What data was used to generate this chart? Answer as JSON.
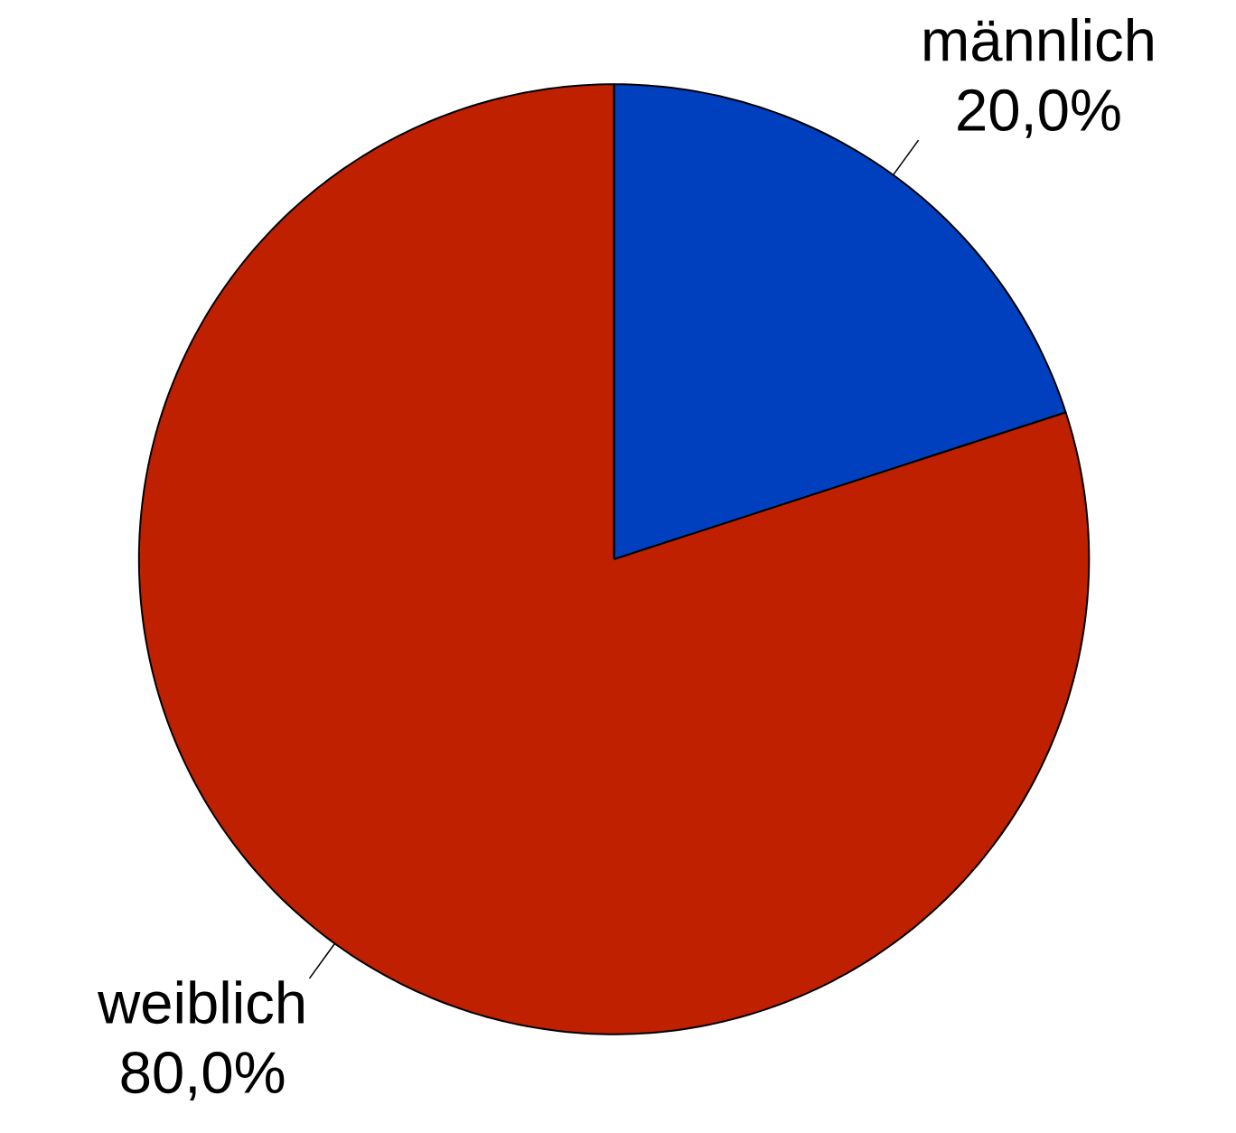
{
  "chart_data": {
    "type": "pie",
    "categories": [
      "männlich",
      "weiblich"
    ],
    "values": [
      20,
      80
    ],
    "colors": [
      "#0040bf",
      "#bf2000"
    ],
    "value_labels": [
      "20,0%",
      "80,0%"
    ]
  }
}
